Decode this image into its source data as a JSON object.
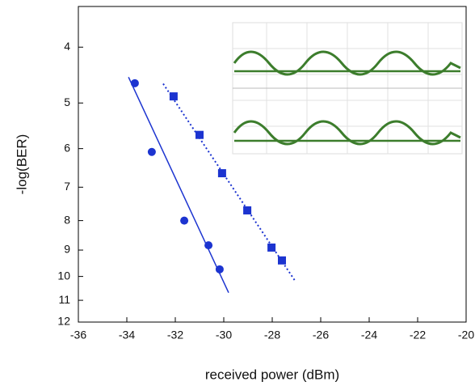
{
  "chart_data": {
    "type": "scatter",
    "x_label": "received power (dBm)",
    "y_label": "-log(BER)",
    "xlim": [
      -36,
      -20
    ],
    "xticks": [
      -36,
      -34,
      -32,
      -30,
      -28,
      -26,
      -24,
      -22,
      -20
    ],
    "ylim": [
      12,
      3.4
    ],
    "yticks": [
      4,
      5,
      6,
      7,
      8,
      9,
      10,
      11,
      12
    ],
    "yscale": "loglog",
    "series": [
      {
        "color": "#1c34d0",
        "marker": "circle",
        "x": [
          -33.67,
          -32.97,
          -31.63,
          -30.63,
          -30.17
        ],
        "values": [
          4.62,
          6.08,
          8.0,
          8.83,
          9.72
        ]
      },
      {
        "color": "#1c34d0",
        "marker": "square",
        "x": [
          -32.07,
          -31.0,
          -30.07,
          -29.03,
          -28.03,
          -27.6
        ],
        "values": [
          4.87,
          5.68,
          6.62,
          7.68,
          8.91,
          9.38
        ]
      },
      {
        "color": "#1c34d0",
        "line": "solid",
        "x": [
          -33.93,
          -29.8
        ],
        "values": [
          4.51,
          10.67
        ]
      },
      {
        "color": "#1c34d0",
        "line": "dotted",
        "x": [
          -32.5,
          -27.07
        ],
        "values": [
          4.63,
          10.16
        ]
      }
    ]
  }
}
